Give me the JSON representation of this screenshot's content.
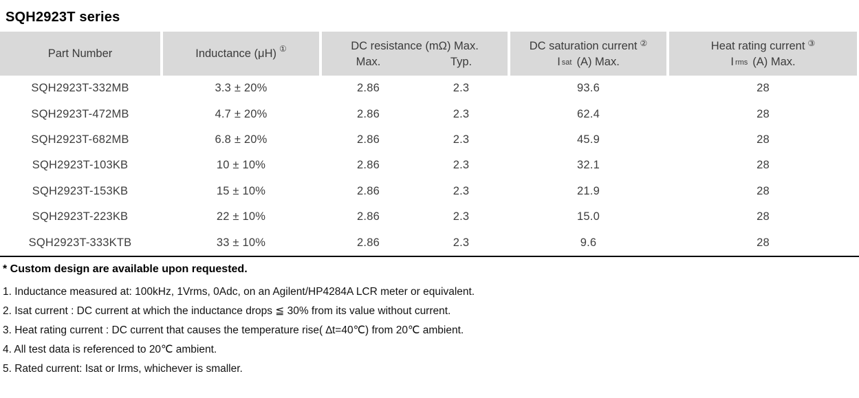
{
  "title": "SQH2923T series",
  "table": {
    "header": {
      "part_number": "Part Number",
      "inductance": {
        "label": "Inductance (μH)",
        "sup": "①"
      },
      "resistance": {
        "title": "DC resistance (mΩ) Max.",
        "max": "Max.",
        "typ": "Typ."
      },
      "saturation": {
        "title": "DC saturation current",
        "sup": "②",
        "symbol": "I",
        "symbol_sub": "sat",
        "unit": "(A)  Max."
      },
      "heat": {
        "title": "Heat rating current",
        "sup": "③",
        "symbol": "I",
        "symbol_sub": "rms",
        "unit": "(A)  Max."
      }
    },
    "rows": [
      [
        "SQH2923T-332MB",
        "3.3 ± 20%",
        "2.86",
        "2.3",
        "93.6",
        "28"
      ],
      [
        "SQH2923T-472MB",
        "4.7 ± 20%",
        "2.86",
        "2.3",
        "62.4",
        "28"
      ],
      [
        "SQH2923T-682MB",
        "6.8 ± 20%",
        "2.86",
        "2.3",
        "45.9",
        "28"
      ],
      [
        "SQH2923T-103KB",
        "10 ± 10%",
        "2.86",
        "2.3",
        "32.1",
        "28"
      ],
      [
        "SQH2923T-153KB",
        "15 ± 10%",
        "2.86",
        "2.3",
        "21.9",
        "28"
      ],
      [
        "SQH2923T-223KB",
        "22 ± 10%",
        "2.86",
        "2.3",
        "15.0",
        "28"
      ],
      [
        "SQH2923T-333KTB",
        "33 ± 10%",
        "2.86",
        "2.3",
        "9.6",
        "28"
      ]
    ]
  },
  "footer": {
    "custom_note": "* Custom design are available upon requested.",
    "notes": [
      "1. Inductance measured at: 100kHz, 1Vrms, 0Adc, on an Agilent/HP4284A LCR meter or equivalent.",
      "2. Isat current : DC current at which the inductance drops ≦ 30% from its value without current.",
      "3. Heat rating current : DC current that causes the temperature rise( ∆t=40℃) from 20℃ ambient.",
      "4. All test data is referenced to 20℃ ambient.",
      "5. Rated current: Isat or Irms, whichever is smaller."
    ]
  },
  "colors": {
    "header_bg": "#d9d9d9",
    "body_text": "#3d3d3d",
    "rule": "#000000"
  }
}
